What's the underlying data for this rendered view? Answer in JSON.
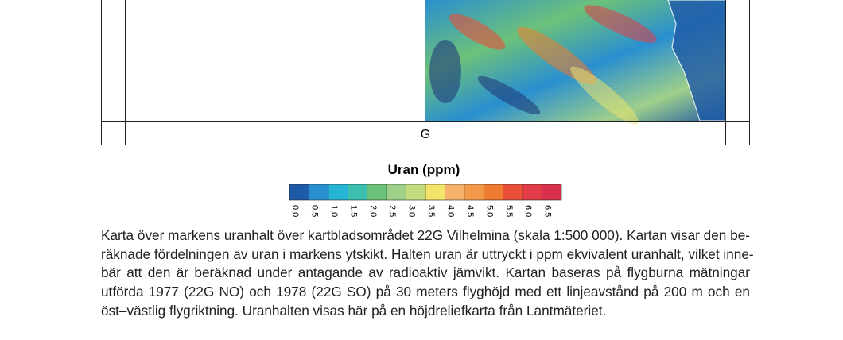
{
  "map": {
    "grid_label": "G"
  },
  "legend": {
    "title": "Uran (ppm)",
    "ticks": [
      "0,0",
      "0,5",
      "1,0",
      "1,5",
      "2,0",
      "2,5",
      "3,0",
      "3,5",
      "4,0",
      "4,5",
      "5,0",
      "5,5",
      "6,0",
      "6,5"
    ],
    "colors": [
      "#1f5aa6",
      "#2a8fd0",
      "#27b5d6",
      "#3dbfb0",
      "#6cc17a",
      "#9fd08a",
      "#c4dc7e",
      "#f2e56a",
      "#f6b26b",
      "#f39a4a",
      "#ee7b2f",
      "#e8503a",
      "#e23c48",
      "#d9304e"
    ]
  },
  "caption": {
    "lines": [
      "Karta över markens uranhalt över kartbladsområdet 22G Vilhelmina (skala 1:500 000). Kartan visar den be-",
      "räknade fördelningen av uran i markens ytskikt. Halten uran är uttryckt i ppm ekvivalent uranhalt, vilket inne-",
      "bär att den är beräknad under antagande av radioaktiv jämvikt. Kartan baseras på flygburna mätningar",
      "utförda 1977 (22G NO) och 1978 (22G SO) på 30 meters flyghöjd med ett linjeavstånd på 200 m och en",
      "öst–västlig flygriktning. Uranhalten visas här på en höjdreliefkarta från Lantmäteriet."
    ]
  }
}
